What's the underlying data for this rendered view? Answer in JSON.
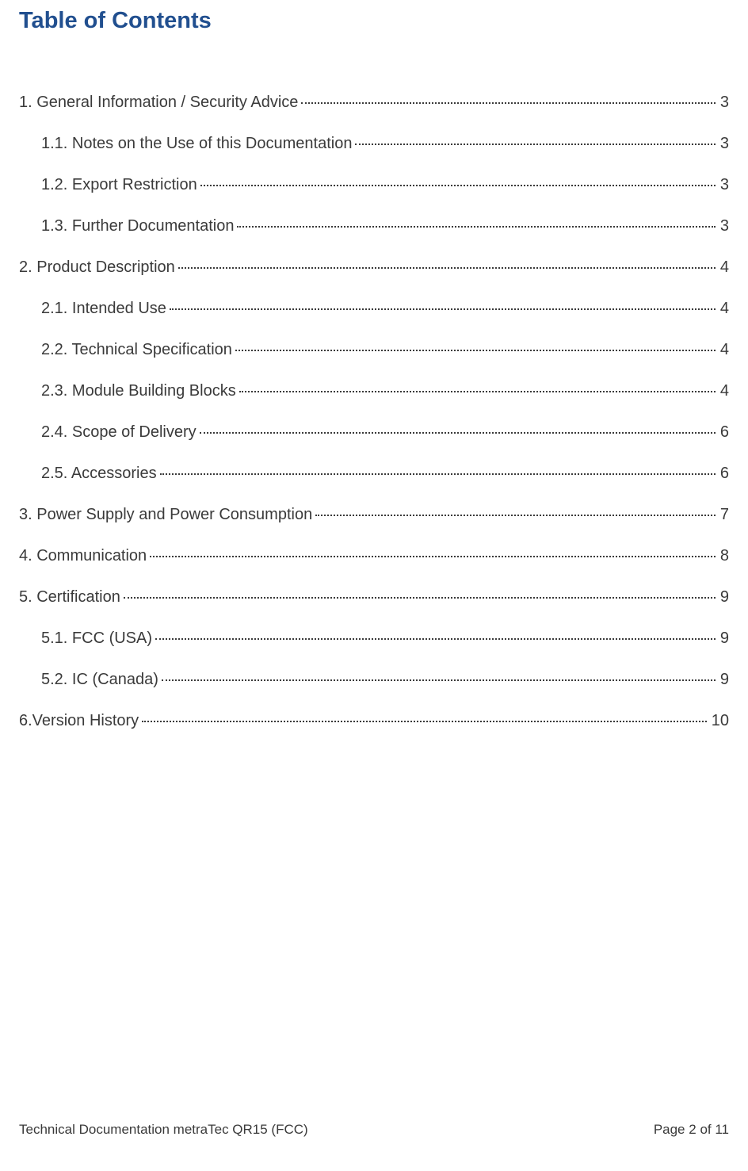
{
  "title": "Table of Contents",
  "title_color": "#214f8f",
  "text_color": "#3a3a3a",
  "background_color": "#ffffff",
  "title_fontsize": 29,
  "entry_fontsize": 20,
  "footer_fontsize": 17,
  "toc": [
    {
      "label": "1. General Information / Security Advice",
      "page": "3",
      "level": 1
    },
    {
      "label": "1.1. Notes on the Use of this Documentation",
      "page": "3",
      "level": 2
    },
    {
      "label": "1.2. Export Restriction",
      "page": "3",
      "level": 2
    },
    {
      "label": "1.3. Further Documentation",
      "page": "3",
      "level": 2
    },
    {
      "label": "2. Product Description",
      "page": "4",
      "level": 1
    },
    {
      "label": "2.1. Intended Use",
      "page": "4",
      "level": 2
    },
    {
      "label": "2.2. Technical Specification",
      "page": "4",
      "level": 2
    },
    {
      "label": "2.3. Module Building Blocks ",
      "page": "4",
      "level": 2
    },
    {
      "label": "2.4. Scope of Delivery",
      "page": "6",
      "level": 2
    },
    {
      "label": "2.5. Accessories",
      "page": "6",
      "level": 2
    },
    {
      "label": "3. Power Supply and Power Consumption",
      "page": "7",
      "level": 1
    },
    {
      "label": "4. Communication",
      "page": "8",
      "level": 1
    },
    {
      "label": "5. Certification",
      "page": "9",
      "level": 1
    },
    {
      "label": "5.1. FCC (USA)",
      "page": "9",
      "level": 2
    },
    {
      "label": "5.2. IC (Canada)",
      "page": "9",
      "level": 2
    },
    {
      "label": "6.Version History",
      "page": "10",
      "level": 1
    }
  ],
  "footer": {
    "left": "Technical Documentation metraTec QR15 (FCC)",
    "right_prefix": "Page ",
    "right_current": "2",
    "right_of": " of ",
    "right_total": "11"
  }
}
